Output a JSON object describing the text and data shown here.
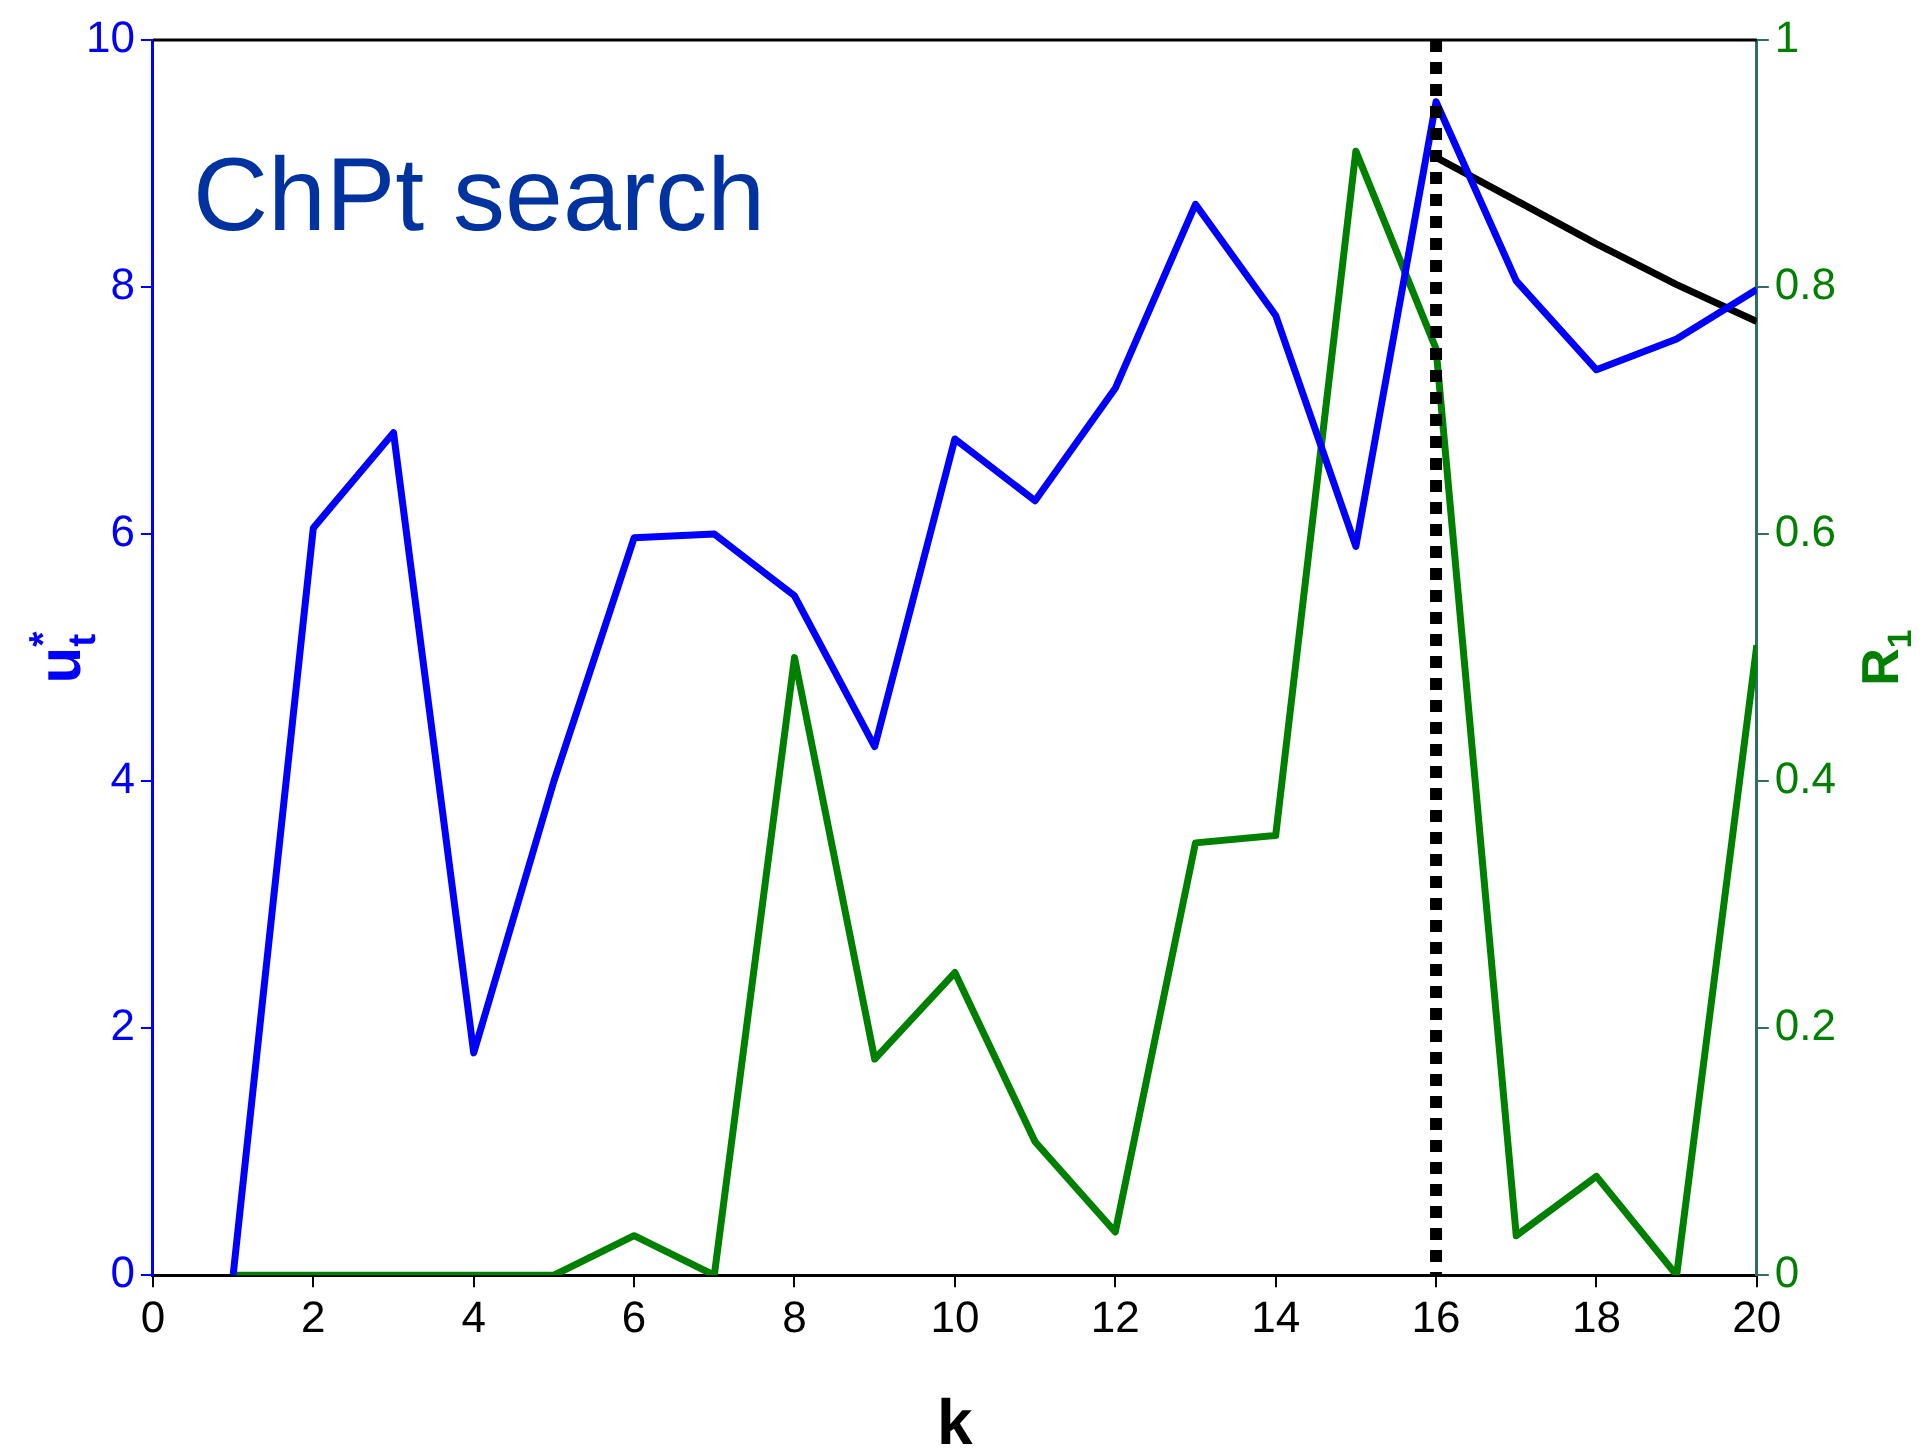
{
  "chart_data": {
    "type": "line",
    "title": "ChPt search",
    "xlabel": "k",
    "ylabel": "u$^{*}$$_{t}$",
    "y2label": "R$_{1}$",
    "x": [
      1,
      2,
      3,
      4,
      5,
      6,
      7,
      8,
      9,
      10,
      11,
      12,
      13,
      14,
      15,
      16,
      17,
      18,
      19,
      20
    ],
    "series": [
      {
        "color": "#0000ff",
        "values": [
          0,
          6.05,
          6.82,
          1.8,
          4.0,
          5.97,
          6.0,
          5.5,
          4.28,
          6.77,
          6.27,
          7.18,
          8.67,
          7.77,
          5.9,
          9.5,
          8.05,
          7.33,
          7.58,
          7.98
        ]
      },
      {
        "color": "#008000",
        "axis": "y2",
        "values": [
          0,
          0,
          0,
          0,
          0,
          0.032,
          0,
          0.5,
          0.175,
          0.245,
          0.108,
          0.035,
          0.35,
          0.356,
          0.91,
          0.75,
          0.032,
          0.08,
          0,
          0.51
        ]
      },
      {
        "color": "#000000",
        "x": [
          16,
          17,
          18,
          19,
          20
        ],
        "values": [
          9.05,
          8.7,
          8.35,
          8.02,
          7.72
        ]
      }
    ],
    "xlim": [
      0,
      20
    ],
    "xticks": [
      0,
      2,
      4,
      6,
      8,
      10,
      12,
      14,
      16,
      18,
      20
    ],
    "ylim": [
      0,
      10
    ],
    "yticks": [
      0,
      2,
      4,
      6,
      8,
      10
    ],
    "y2lim": [
      0,
      1
    ],
    "y2ticks": [
      0,
      0.2,
      0.4,
      0.6,
      0.8,
      1
    ],
    "ref_lines": [
      {
        "axis": "x",
        "value": 16,
        "color": "#000000",
        "line_style": "dotted"
      }
    ],
    "grid": false,
    "legend": false,
    "marker": "none",
    "line_style": "solid"
  }
}
